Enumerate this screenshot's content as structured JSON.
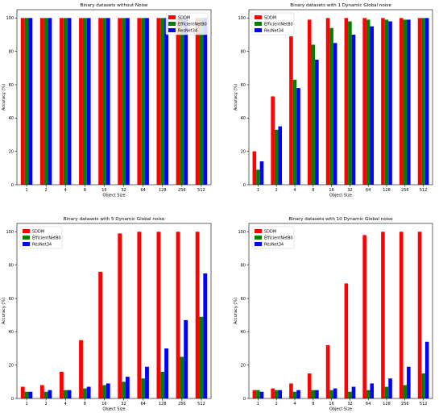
{
  "chart_data": [
    {
      "type": "bar",
      "title": "Binary datasets without Noise",
      "xlabel": "Object Size",
      "ylabel": "Accuracy (%)",
      "ylim": [
        0,
        105
      ],
      "yticks": [
        0,
        20,
        40,
        60,
        80,
        100
      ],
      "legend_position": "top-right",
      "grid": false,
      "categories": [
        "1",
        "2",
        "4",
        "8",
        "16",
        "32",
        "64",
        "128",
        "256",
        "512"
      ],
      "series": [
        {
          "name": "SDDM",
          "color": "#ff0000",
          "values": [
            100,
            100,
            100,
            100,
            100,
            100,
            100,
            100,
            100,
            100
          ]
        },
        {
          "name": "EfficientNetB0",
          "color": "#008000",
          "values": [
            100,
            100,
            100,
            100,
            100,
            100,
            100,
            100,
            100,
            100
          ]
        },
        {
          "name": "ResNet34",
          "color": "#0000ff",
          "values": [
            100,
            100,
            100,
            100,
            100,
            100,
            100,
            100,
            100,
            100
          ]
        }
      ]
    },
    {
      "type": "bar",
      "title": "Binary datasets with 1 Dynamic Global noise",
      "xlabel": "Object Size",
      "ylabel": "Accuracy (%)",
      "ylim": [
        0,
        105
      ],
      "yticks": [
        0,
        20,
        40,
        60,
        80,
        100
      ],
      "legend_position": "top-left",
      "grid": false,
      "categories": [
        "1",
        "2",
        "4",
        "8",
        "16",
        "32",
        "64",
        "128",
        "256",
        "512"
      ],
      "series": [
        {
          "name": "SDDM",
          "color": "#ff0000",
          "values": [
            20,
            53,
            89,
            99,
            100,
            100,
            100,
            100,
            100,
            100
          ]
        },
        {
          "name": "EfficientNetB0",
          "color": "#008000",
          "values": [
            9,
            33,
            63,
            84,
            94,
            98,
            99,
            99,
            99,
            100
          ]
        },
        {
          "name": "ResNet34",
          "color": "#0000ff",
          "values": [
            14,
            35,
            58,
            75,
            85,
            90,
            95,
            98,
            99,
            100
          ]
        }
      ]
    },
    {
      "type": "bar",
      "title": "Binary datasets with 5 Dynamic Global noise",
      "xlabel": "Object Size",
      "ylabel": "Accuracy (%)",
      "ylim": [
        0,
        105
      ],
      "yticks": [
        0,
        20,
        40,
        60,
        80,
        100
      ],
      "legend_position": "top-left",
      "grid": false,
      "categories": [
        "1",
        "2",
        "4",
        "8",
        "16",
        "32",
        "64",
        "128",
        "256",
        "512"
      ],
      "series": [
        {
          "name": "SDDM",
          "color": "#ff0000",
          "values": [
            7,
            8,
            16,
            35,
            76,
            99,
            100,
            100,
            100,
            100
          ]
        },
        {
          "name": "EfficientNetB0",
          "color": "#008000",
          "values": [
            4,
            4,
            5,
            6,
            8,
            10,
            12,
            16,
            25,
            49
          ]
        },
        {
          "name": "ResNet34",
          "color": "#0000ff",
          "values": [
            4,
            5,
            5,
            7,
            9,
            13,
            19,
            30,
            47,
            75
          ]
        }
      ]
    },
    {
      "type": "bar",
      "title": "Binary datasets with 10 Dynamic Global noise",
      "xlabel": "Object Size",
      "ylabel": "Accuracy (%)",
      "ylim": [
        0,
        105
      ],
      "yticks": [
        0,
        20,
        40,
        60,
        80,
        100
      ],
      "legend_position": "top-left",
      "grid": false,
      "categories": [
        "1",
        "2",
        "4",
        "8",
        "16",
        "32",
        "64",
        "128",
        "256",
        "512"
      ],
      "series": [
        {
          "name": "SDDM",
          "color": "#ff0000",
          "values": [
            5,
            6,
            9,
            15,
            32,
            69,
            98,
            100,
            100,
            100
          ]
        },
        {
          "name": "EfficientNetB0",
          "color": "#008000",
          "values": [
            5,
            5,
            4,
            5,
            5,
            4,
            5,
            7,
            8,
            15
          ]
        },
        {
          "name": "ResNet34",
          "color": "#0000ff",
          "values": [
            4,
            5,
            5,
            5,
            6,
            7,
            9,
            12,
            19,
            34
          ]
        }
      ]
    }
  ]
}
